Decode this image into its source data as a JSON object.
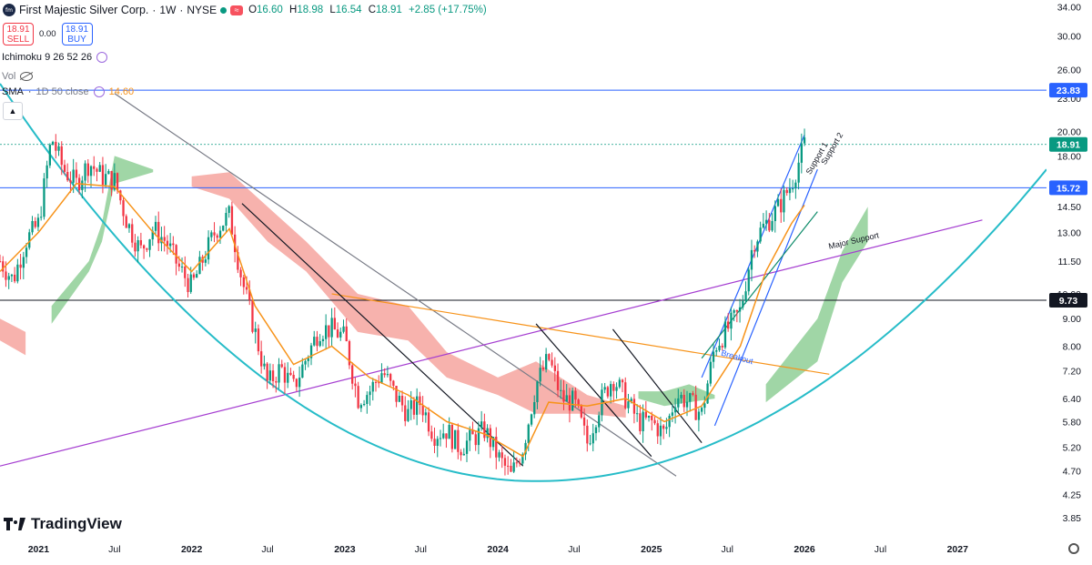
{
  "header": {
    "logo_text": "fm",
    "title": "First Majestic Silver Corp.",
    "interval": "1W",
    "exchange": "NYSE",
    "alert_badge": "≈",
    "open_label": "O",
    "open": "16.60",
    "high_label": "H",
    "high": "18.98",
    "low_label": "L",
    "low": "16.54",
    "close_label": "C",
    "close": "18.91",
    "change": "+2.85 (+17.75%)"
  },
  "trade": {
    "sell_price": "18.91",
    "sell_label": "SELL",
    "spread": "0.00",
    "buy_price": "18.91",
    "buy_label": "BUY"
  },
  "indicators": {
    "ichimoku": "Ichimoku 9 26 52 26",
    "vol": "Vol",
    "sma_label": "SMA",
    "sma_params": "1D 50 close",
    "sma_value": "14.60"
  },
  "branding": {
    "name": "TradingView"
  },
  "colors": {
    "up": "#089981",
    "down": "#f23645",
    "sma": "#f7931a",
    "kumo_bull": "#8fcf96",
    "kumo_bear": "#f6a59f",
    "bowl": "#26bcc8",
    "trend_purple": "#a43cd0",
    "trend_orange": "#f7931a",
    "channel_blue": "#2962ff",
    "level_blue": "#2962ff",
    "trend_gray": "#787b86"
  },
  "chart_data": {
    "type": "candlestick",
    "title": "",
    "y_scale": "log",
    "ylim": [
      3.55,
      35.0
    ],
    "x_range": [
      "2020-10-01",
      "2027-08-01"
    ],
    "y_ticks": [
      "34.00",
      "30.00",
      "26.00",
      "23.00",
      "20.00",
      "18.00",
      "16.00",
      "14.50",
      "13.00",
      "11.50",
      "10.00",
      "9.00",
      "8.00",
      "7.20",
      "6.40",
      "5.80",
      "5.20",
      "4.70",
      "4.25",
      "3.85"
    ],
    "x_ticks": [
      {
        "date": "2021-01-01",
        "label": "2021"
      },
      {
        "date": "2021-07-01",
        "label": "Jul"
      },
      {
        "date": "2022-01-01",
        "label": "2022"
      },
      {
        "date": "2022-07-01",
        "label": "Jul"
      },
      {
        "date": "2023-01-01",
        "label": "2023"
      },
      {
        "date": "2023-07-01",
        "label": "Jul"
      },
      {
        "date": "2024-01-01",
        "label": "2024"
      },
      {
        "date": "2024-07-01",
        "label": "Jul"
      },
      {
        "date": "2025-01-01",
        "label": "2025"
      },
      {
        "date": "2025-07-01",
        "label": "Jul"
      },
      {
        "date": "2026-01-01",
        "label": "2026"
      },
      {
        "date": "2026-07-01",
        "label": "Jul"
      },
      {
        "date": "2027-01-01",
        "label": "2027"
      }
    ],
    "price_path": [
      [
        "2020-10-01",
        11.5
      ],
      [
        "2020-11-01",
        10.6
      ],
      [
        "2020-12-01",
        12.5
      ],
      [
        "2021-01-01",
        13.5
      ],
      [
        "2021-02-01",
        19.5
      ],
      [
        "2021-03-01",
        17.0
      ],
      [
        "2021-04-01",
        16.0
      ],
      [
        "2021-05-01",
        17.5
      ],
      [
        "2021-06-01",
        16.5
      ],
      [
        "2021-07-01",
        16.2
      ],
      [
        "2021-08-01",
        13.5
      ],
      [
        "2021-09-01",
        12.0
      ],
      [
        "2021-10-01",
        13.2
      ],
      [
        "2021-11-01",
        12.5
      ],
      [
        "2021-12-01",
        11.2
      ],
      [
        "2022-01-01",
        10.3
      ],
      [
        "2022-02-01",
        11.8
      ],
      [
        "2022-03-01",
        13.2
      ],
      [
        "2022-04-01",
        14.0
      ],
      [
        "2022-05-01",
        10.6
      ],
      [
        "2022-06-01",
        8.5
      ],
      [
        "2022-07-01",
        6.8
      ],
      [
        "2022-08-01",
        7.3
      ],
      [
        "2022-09-01",
        6.7
      ],
      [
        "2022-10-01",
        7.6
      ],
      [
        "2022-11-01",
        8.6
      ],
      [
        "2022-12-01",
        8.6
      ],
      [
        "2023-01-01",
        8.3
      ],
      [
        "2023-02-01",
        6.4
      ],
      [
        "2023-03-01",
        6.6
      ],
      [
        "2023-04-01",
        7.2
      ],
      [
        "2023-05-01",
        6.5
      ],
      [
        "2023-06-01",
        6.0
      ],
      [
        "2023-07-01",
        6.3
      ],
      [
        "2023-08-01",
        5.5
      ],
      [
        "2023-09-01",
        5.6
      ],
      [
        "2023-10-01",
        5.2
      ],
      [
        "2023-11-01",
        5.4
      ],
      [
        "2023-12-01",
        5.6
      ],
      [
        "2024-01-01",
        5.0
      ],
      [
        "2024-02-01",
        4.6
      ],
      [
        "2024-03-01",
        5.2
      ],
      [
        "2024-04-01",
        6.8
      ],
      [
        "2024-05-01",
        7.6
      ],
      [
        "2024-06-01",
        6.4
      ],
      [
        "2024-07-01",
        6.3
      ],
      [
        "2024-08-01",
        5.3
      ],
      [
        "2024-09-01",
        6.3
      ],
      [
        "2024-10-01",
        7.0
      ],
      [
        "2024-11-01",
        6.4
      ],
      [
        "2024-12-01",
        5.8
      ],
      [
        "2025-01-01",
        5.8
      ],
      [
        "2025-02-01",
        5.5
      ],
      [
        "2025-03-01",
        6.5
      ],
      [
        "2025-04-01",
        6.3
      ],
      [
        "2025-05-01",
        6.0
      ],
      [
        "2025-06-01",
        8.0
      ],
      [
        "2025-07-01",
        8.6
      ],
      [
        "2025-08-01",
        9.3
      ],
      [
        "2025-09-01",
        12.5
      ],
      [
        "2025-10-01",
        13.5
      ],
      [
        "2025-11-01",
        14.5
      ],
      [
        "2025-12-01",
        16.0
      ],
      [
        "2026-01-01",
        18.9
      ]
    ],
    "sma_50": [
      [
        "2020-10-01",
        11.0
      ],
      [
        "2021-01-01",
        13.0
      ],
      [
        "2021-04-01",
        16.0
      ],
      [
        "2021-07-01",
        15.8
      ],
      [
        "2021-10-01",
        13.0
      ],
      [
        "2022-01-01",
        11.0
      ],
      [
        "2022-04-01",
        13.2
      ],
      [
        "2022-06-01",
        9.5
      ],
      [
        "2022-09-01",
        7.4
      ],
      [
        "2022-12-01",
        8.0
      ],
      [
        "2023-03-01",
        7.0
      ],
      [
        "2023-06-01",
        6.5
      ],
      [
        "2023-09-01",
        5.8
      ],
      [
        "2023-12-01",
        5.5
      ],
      [
        "2024-03-01",
        5.0
      ],
      [
        "2024-05-01",
        6.3
      ],
      [
        "2024-08-01",
        6.2
      ],
      [
        "2024-11-01",
        6.4
      ],
      [
        "2025-02-01",
        5.8
      ],
      [
        "2025-05-01",
        6.2
      ],
      [
        "2025-08-01",
        8.0
      ],
      [
        "2025-10-01",
        11.0
      ],
      [
        "2025-12-01",
        13.5
      ],
      [
        "2026-01-01",
        14.6
      ]
    ],
    "kumo_bull_regions": [
      [
        [
          "2021-02-01",
          8.8,
          9.5
        ],
        [
          "2021-05-01",
          11.0,
          11.5
        ],
        [
          "2021-06-01",
          12.5,
          13.5
        ],
        [
          "2021-07-01",
          16.0,
          18.0
        ],
        [
          "2021-10-01",
          16.8,
          17.0
        ]
      ],
      [
        [
          "2024-12-01",
          6.4,
          6.6
        ],
        [
          "2025-02-01",
          6.2,
          6.6
        ],
        [
          "2025-04-01",
          6.3,
          6.8
        ],
        [
          "2025-06-01",
          6.4,
          6.5
        ]
      ],
      [
        [
          "2025-10-01",
          6.3,
          6.8
        ],
        [
          "2026-02-01",
          7.5,
          9.0
        ],
        [
          "2026-04-01",
          10.5,
          12.0
        ],
        [
          "2026-06-01",
          12.5,
          14.5
        ]
      ]
    ],
    "kumo_bear_regions": [
      [
        [
          "2020-10-01",
          8.2,
          9.0
        ],
        [
          "2020-12-01",
          7.7,
          8.5
        ]
      ],
      [
        [
          "2022-01-01",
          15.8,
          16.5
        ],
        [
          "2022-04-01",
          15.0,
          16.8
        ],
        [
          "2022-07-01",
          12.5,
          14.5
        ],
        [
          "2022-10-01",
          11.0,
          12.5
        ],
        [
          "2023-02-01",
          8.5,
          10.0
        ],
        [
          "2023-06-01",
          8.2,
          9.5
        ],
        [
          "2023-09-01",
          7.0,
          7.8
        ],
        [
          "2024-01-01",
          6.5,
          7.0
        ],
        [
          "2024-04-01",
          6.0,
          7.5
        ],
        [
          "2024-08-01",
          6.0,
          6.5
        ],
        [
          "2024-11-01",
          5.9,
          6.2
        ]
      ]
    ],
    "horizontal_levels": [
      {
        "value": 23.83,
        "label": "23.83",
        "color": "#2962ff",
        "style": "solid"
      },
      {
        "value": 18.91,
        "label": "18.91",
        "color": "#089981",
        "style": "dotted"
      },
      {
        "value": 15.72,
        "label": "15.72",
        "color": "#2962ff",
        "style": "solid"
      },
      {
        "value": 9.73,
        "label": "9.73",
        "color": "#131722",
        "style": "solid"
      }
    ],
    "trendlines": [
      {
        "name": "long-downtrend",
        "color": "#787b86",
        "points": [
          [
            "2021-07-01",
            23.5
          ],
          [
            "2025-03-01",
            4.6
          ]
        ]
      },
      {
        "name": "major-support",
        "color": "#a43cd0",
        "points": [
          [
            "2020-10-01",
            4.8
          ],
          [
            "2027-03-01",
            13.7
          ]
        ]
      },
      {
        "name": "orange-resistance",
        "color": "#f7931a",
        "points": [
          [
            "2022-12-01",
            10.0
          ],
          [
            "2026-03-01",
            7.1
          ]
        ]
      },
      {
        "name": "down-1",
        "color": "#131722",
        "points": [
          [
            "2022-05-01",
            14.7
          ],
          [
            "2024-03-01",
            4.8
          ]
        ]
      },
      {
        "name": "down-2",
        "color": "#131722",
        "points": [
          [
            "2024-04-01",
            8.8
          ],
          [
            "2025-01-01",
            5.0
          ]
        ]
      },
      {
        "name": "down-3",
        "color": "#131722",
        "points": [
          [
            "2024-10-01",
            8.6
          ],
          [
            "2025-05-01",
            5.3
          ]
        ]
      },
      {
        "name": "channel-upper",
        "color": "#2962ff",
        "points": [
          [
            "2025-05-01",
            7.0
          ],
          [
            "2026-01-01",
            19.7
          ]
        ]
      },
      {
        "name": "channel-lower",
        "color": "#2962ff",
        "points": [
          [
            "2025-06-01",
            5.7
          ],
          [
            "2026-02-01",
            17.0
          ]
        ]
      },
      {
        "name": "support-1",
        "color": "#0e8b6a",
        "points": [
          [
            "2025-05-01",
            7.6
          ],
          [
            "2026-02-01",
            14.2
          ]
        ]
      },
      {
        "name": "bowl",
        "color": "#26bcc8",
        "curve": "parabolic",
        "vertex": [
          "2024-04-01",
          4.5
        ],
        "ends": [
          [
            "2020-10-01",
            24.5
          ],
          [
            "2027-08-01",
            17.0
          ]
        ]
      }
    ],
    "annotations": [
      {
        "text": "Major Support",
        "at": [
          "2026-03-01",
          12.1
        ],
        "angle": -13
      },
      {
        "text": "Support 1",
        "at": [
          "2026-01-15",
          16.6
        ],
        "angle": -60
      },
      {
        "text": "Support 2",
        "at": [
          "2026-02-20",
          17.3
        ],
        "angle": -60
      },
      {
        "text": "Breakout",
        "at": [
          "2025-06-15",
          7.7
        ],
        "angle": 16,
        "color": "#2962ff"
      }
    ]
  }
}
